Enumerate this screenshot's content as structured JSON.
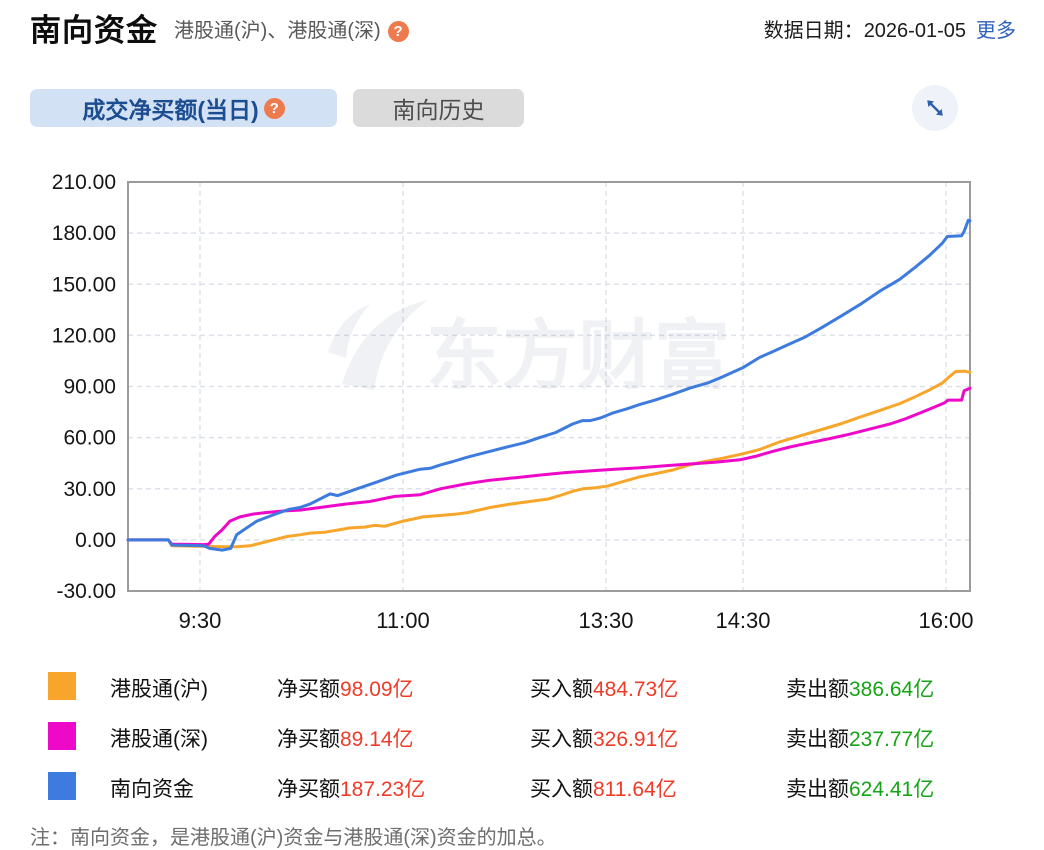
{
  "header": {
    "title": "南向资金",
    "subtitle": "港股通(沪)、港股通(深)",
    "help_icon": "?",
    "date_label": "数据日期：",
    "date_value": "2026-01-05",
    "more_link": "更多"
  },
  "tabs": {
    "active_label": "成交净买额(当日)",
    "inactive_label": "南向历史"
  },
  "watermark": "东方财富",
  "colors": {
    "hgt_sh": "#F7A62B",
    "hgt_sz": "#EE08C8",
    "southbound": "#3D7BDF",
    "value_red": "#EE3B28",
    "value_green": "#16A416",
    "tab_active_bg": "#D2E1F3",
    "tab_active_text": "#1C4D92",
    "grid": "#DCE1EA",
    "frame": "#9B9B9B"
  },
  "chart_data": {
    "type": "line",
    "unit": "亿",
    "ylim": [
      -30,
      210
    ],
    "grid": "dashed",
    "yticks": [
      {
        "value": 210,
        "label": "210.00"
      },
      {
        "value": 180,
        "label": "180.00"
      },
      {
        "value": 150,
        "label": "150.00"
      },
      {
        "value": 120,
        "label": "120.00"
      },
      {
        "value": 90,
        "label": "90.00"
      },
      {
        "value": 60,
        "label": "60.00"
      },
      {
        "value": 30,
        "label": "30.00"
      },
      {
        "value": 0,
        "label": "0.00"
      },
      {
        "value": -30,
        "label": "-30.00"
      }
    ],
    "xticks": [
      {
        "pos": 0.0855,
        "label": "9:30"
      },
      {
        "pos": 0.3266,
        "label": "11:00"
      },
      {
        "pos": 0.5677,
        "label": "13:30"
      },
      {
        "pos": 0.7304,
        "label": "14:30"
      },
      {
        "pos": 0.9715,
        "label": "16:00"
      }
    ],
    "series": [
      {
        "name": "港股通(沪)",
        "color": "#F7A62B",
        "final": 98.09,
        "points": [
          [
            0,
            0
          ],
          [
            0.048,
            0
          ],
          [
            0.052,
            -3.5
          ],
          [
            0.115,
            -4
          ],
          [
            0.129,
            -4
          ],
          [
            0.145,
            -3.5
          ],
          [
            0.165,
            -1
          ],
          [
            0.189,
            2
          ],
          [
            0.204,
            3
          ],
          [
            0.216,
            4
          ],
          [
            0.234,
            4.5
          ],
          [
            0.252,
            6
          ],
          [
            0.264,
            7
          ],
          [
            0.281,
            7.5
          ],
          [
            0.293,
            8.5
          ],
          [
            0.305,
            8
          ],
          [
            0.327,
            11
          ],
          [
            0.341,
            12.5
          ],
          [
            0.35,
            13.5
          ],
          [
            0.374,
            14.5
          ],
          [
            0.388,
            15
          ],
          [
            0.403,
            16
          ],
          [
            0.43,
            19
          ],
          [
            0.454,
            21
          ],
          [
            0.477,
            22.5
          ],
          [
            0.499,
            24
          ],
          [
            0.513,
            26
          ],
          [
            0.528,
            28.5
          ],
          [
            0.54,
            30
          ],
          [
            0.554,
            30.5
          ],
          [
            0.569,
            31.5
          ],
          [
            0.59,
            34.5
          ],
          [
            0.608,
            37
          ],
          [
            0.628,
            39
          ],
          [
            0.647,
            41
          ],
          [
            0.667,
            44
          ],
          [
            0.685,
            46
          ],
          [
            0.707,
            48
          ],
          [
            0.73,
            50.5
          ],
          [
            0.75,
            53
          ],
          [
            0.774,
            57.5
          ],
          [
            0.798,
            61
          ],
          [
            0.822,
            64.5
          ],
          [
            0.846,
            68
          ],
          [
            0.869,
            72
          ],
          [
            0.893,
            76
          ],
          [
            0.917,
            80
          ],
          [
            0.935,
            84
          ],
          [
            0.952,
            88
          ],
          [
            0.967,
            92
          ],
          [
            0.976,
            96
          ],
          [
            0.983,
            98.8
          ],
          [
            0.994,
            99
          ],
          [
            1,
            98.3
          ]
        ]
      },
      {
        "name": "港股通(深)",
        "color": "#EE08C8",
        "final": 89.14,
        "points": [
          [
            0,
            0
          ],
          [
            0.048,
            0
          ],
          [
            0.052,
            -2.5
          ],
          [
            0.09,
            -2.8
          ],
          [
            0.096,
            -2.5
          ],
          [
            0.103,
            2
          ],
          [
            0.112,
            6
          ],
          [
            0.121,
            11
          ],
          [
            0.133,
            13.5
          ],
          [
            0.147,
            15
          ],
          [
            0.163,
            16
          ],
          [
            0.186,
            17
          ],
          [
            0.204,
            17.5
          ],
          [
            0.228,
            19
          ],
          [
            0.258,
            21
          ],
          [
            0.287,
            22.5
          ],
          [
            0.317,
            25.5
          ],
          [
            0.347,
            26.5
          ],
          [
            0.371,
            30
          ],
          [
            0.403,
            33
          ],
          [
            0.43,
            35
          ],
          [
            0.46,
            36.5
          ],
          [
            0.489,
            38
          ],
          [
            0.519,
            39.5
          ],
          [
            0.549,
            40.5
          ],
          [
            0.578,
            41.5
          ],
          [
            0.608,
            42.3
          ],
          [
            0.638,
            43.5
          ],
          [
            0.667,
            44.5
          ],
          [
            0.697,
            45.5
          ],
          [
            0.727,
            47
          ],
          [
            0.745,
            49
          ],
          [
            0.766,
            52
          ],
          [
            0.786,
            54.5
          ],
          [
            0.81,
            57
          ],
          [
            0.834,
            59.5
          ],
          [
            0.857,
            62
          ],
          [
            0.881,
            65
          ],
          [
            0.905,
            68
          ],
          [
            0.923,
            71
          ],
          [
            0.941,
            74.5
          ],
          [
            0.958,
            78
          ],
          [
            0.97,
            80.5
          ],
          [
            0.974,
            82
          ],
          [
            0.99,
            82
          ],
          [
            0.993,
            87.5
          ],
          [
            1,
            89
          ]
        ]
      },
      {
        "name": "南向资金",
        "color": "#3D7BDF",
        "final": 187.23,
        "points": [
          [
            0,
            0
          ],
          [
            0.048,
            0
          ],
          [
            0.052,
            -3
          ],
          [
            0.09,
            -3.5
          ],
          [
            0.097,
            -5
          ],
          [
            0.112,
            -6
          ],
          [
            0.122,
            -5
          ],
          [
            0.129,
            3
          ],
          [
            0.141,
            7
          ],
          [
            0.153,
            11
          ],
          [
            0.169,
            14
          ],
          [
            0.18,
            16
          ],
          [
            0.192,
            18
          ],
          [
            0.204,
            19
          ],
          [
            0.216,
            21
          ],
          [
            0.228,
            24
          ],
          [
            0.24,
            27
          ],
          [
            0.249,
            26
          ],
          [
            0.272,
            30
          ],
          [
            0.296,
            34
          ],
          [
            0.319,
            38
          ],
          [
            0.335,
            40
          ],
          [
            0.347,
            41.5
          ],
          [
            0.359,
            42
          ],
          [
            0.371,
            44
          ],
          [
            0.386,
            46
          ],
          [
            0.403,
            48.5
          ],
          [
            0.43,
            52
          ],
          [
            0.45,
            54.5
          ],
          [
            0.471,
            57
          ],
          [
            0.489,
            60
          ],
          [
            0.508,
            63
          ],
          [
            0.528,
            68
          ],
          [
            0.54,
            70
          ],
          [
            0.549,
            70
          ],
          [
            0.561,
            71.5
          ],
          [
            0.576,
            74.5
          ],
          [
            0.593,
            77
          ],
          [
            0.608,
            79.5
          ],
          [
            0.626,
            82
          ],
          [
            0.647,
            85.5
          ],
          [
            0.667,
            89
          ],
          [
            0.688,
            92
          ],
          [
            0.703,
            95
          ],
          [
            0.73,
            101
          ],
          [
            0.75,
            107
          ],
          [
            0.768,
            111
          ],
          [
            0.786,
            115
          ],
          [
            0.804,
            119
          ],
          [
            0.822,
            124
          ],
          [
            0.846,
            131
          ],
          [
            0.869,
            138
          ],
          [
            0.893,
            146
          ],
          [
            0.917,
            153
          ],
          [
            0.935,
            160
          ],
          [
            0.952,
            167
          ],
          [
            0.967,
            174
          ],
          [
            0.973,
            178
          ],
          [
            0.99,
            178.5
          ],
          [
            0.993,
            181
          ],
          [
            0.998,
            187.5
          ],
          [
            1,
            187.2
          ]
        ]
      }
    ]
  },
  "legend": {
    "rows": [
      {
        "name": "港股通(沪)",
        "color": "#F7A62B",
        "net_label": "净买额",
        "net_value": "98.09亿",
        "buy_label": "买入额",
        "buy_value": "484.73亿",
        "sell_label": "卖出额",
        "sell_value": "386.64亿"
      },
      {
        "name": "港股通(深)",
        "color": "#EE08C8",
        "net_label": "净买额",
        "net_value": "89.14亿",
        "buy_label": "买入额",
        "buy_value": "326.91亿",
        "sell_label": "卖出额",
        "sell_value": "237.77亿"
      },
      {
        "name": "南向资金",
        "color": "#3D7BDF",
        "net_label": "净买额",
        "net_value": "187.23亿",
        "buy_label": "买入额",
        "buy_value": "811.64亿",
        "sell_label": "卖出额",
        "sell_value": "624.41亿"
      }
    ]
  },
  "note": "注：南向资金，是港股通(沪)资金与港股通(深)资金的加总。"
}
